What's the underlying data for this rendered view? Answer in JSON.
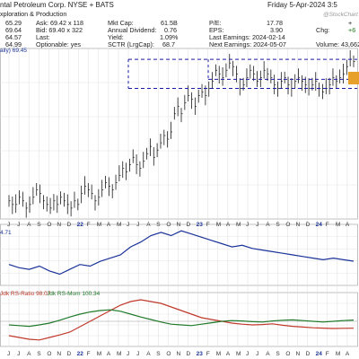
{
  "header": {
    "company": "ntal Petroleum Corp. NYSE + BATS",
    "date": "Friday  5-Apr-2024  3:5",
    "watermark": "@StockChart",
    "sector": "xploration & Production",
    "open": "65.29",
    "high": "69.64",
    "low": "64.57",
    "prev": "64.99",
    "ask": "Ask: 69.42 x 118",
    "bid": "Bid: 69.40 x 322",
    "last": "Last:",
    "optionable": "Optionable: yes",
    "mktcap": "Mkt Cap:",
    "mktcap_val": "61.5B",
    "div": "Annual Dividend:",
    "div_val": "0.76",
    "yield": "Yield:",
    "yield_val": "1.09%",
    "sctr": "SCTR (LrgCap):",
    "sctr_val": "68.7",
    "pe": "P/E:",
    "pe_val": "17.78",
    "eps": "EPS:",
    "eps_val": "3.90",
    "last_earn": "Last Earnings: 2024-02-14",
    "next_earn": "Next Earnings: 2024-05-07",
    "chg": "Chg:",
    "chg_val": "+6",
    "volume": "Volume: 43,662",
    "plus": "+"
  },
  "panels": {
    "price_label": "aily) 69.45",
    "mid_label": "4.71",
    "bottom_label_rs": "Jdk RS-Ratio 98.07",
    "bottom_label_mom": "Jdk RS-Mom 100.34"
  },
  "x_axis": {
    "labels": [
      "J",
      "J",
      "A",
      "S",
      "O",
      "N",
      "D",
      "22",
      "F",
      "M",
      "A",
      "M",
      "J",
      "J",
      "A",
      "S",
      "O",
      "N",
      "D",
      "23",
      "F",
      "M",
      "A",
      "M",
      "J",
      "J",
      "A",
      "S",
      "O",
      "N",
      "D",
      "24",
      "F",
      "M",
      "A"
    ]
  },
  "colors": {
    "price": "#1a1a1a",
    "channel": "#1a1aa8",
    "mid_line": "#1a3399",
    "rs_ratio": "#c0392b",
    "rs_mom": "#1f7a2a",
    "tag": "#e7a12a"
  },
  "chart_data": [
    {
      "type": "line",
      "title": "",
      "series": [
        {
          "values": [
            31,
            30,
            30,
            32,
            31,
            29,
            30,
            32,
            34,
            33,
            31,
            30,
            29,
            31,
            30,
            32,
            31,
            30,
            29,
            31,
            30,
            33,
            35,
            34,
            33,
            31,
            32,
            34,
            36,
            35,
            34,
            36,
            38,
            40,
            39,
            41,
            43,
            41,
            40,
            42,
            44,
            46,
            43,
            45,
            47,
            49,
            48,
            50,
            55,
            57,
            55,
            58,
            60,
            59,
            57,
            60,
            61,
            60,
            62,
            64,
            67,
            66,
            65,
            67,
            69,
            68,
            66,
            62,
            63,
            65,
            67,
            66,
            64,
            65,
            67,
            66,
            65,
            63,
            62,
            64,
            65,
            63,
            62,
            64,
            65,
            64,
            63,
            62,
            63,
            64,
            62,
            61,
            62,
            63,
            65,
            64,
            65,
            66,
            68,
            70,
            69.45
          ]
        }
      ],
      "channel_lines": [
        70,
        64.5,
        62
      ]
    },
    {
      "type": "line",
      "series": [
        {
          "values": [
            4.5,
            4.3,
            4.2,
            4.4,
            4.1,
            3.9,
            4.2,
            4.5,
            4.4,
            4.7,
            4.9,
            5.1,
            5.6,
            5.9,
            6.3,
            6.5,
            6.3,
            6.6,
            6.4,
            6.2,
            6.0,
            5.8,
            5.6,
            5.7,
            5.5,
            5.4,
            5.3,
            5.2,
            5.1,
            5.0,
            4.9,
            4.8,
            4.9,
            4.8,
            4.71
          ]
        }
      ]
    },
    {
      "type": "line",
      "series": [
        {
          "name": "Jdk RS-Ratio",
          "values": [
            96,
            95.5,
            95,
            94.8,
            95.5,
            96.2,
            97,
            98.5,
            100,
            101.5,
            103,
            104.5,
            105.5,
            106,
            105.5,
            105,
            104,
            103,
            102,
            101,
            100.5,
            100,
            99.5,
            99.2,
            99,
            99.1,
            99.3,
            98.9,
            98.6,
            98.4,
            98.2,
            98.1,
            98,
            98.05,
            98.07
          ]
        },
        {
          "name": "Jdk RS-Mom",
          "values": [
            99,
            98.8,
            98.6,
            99,
            99.5,
            100.3,
            101.2,
            102,
            102.6,
            103,
            103.2,
            102.8,
            102,
            101.2,
            100.5,
            99.8,
            99.2,
            99,
            98.8,
            99.2,
            99.6,
            100,
            100.2,
            100.1,
            99.9,
            99.8,
            100.1,
            100.3,
            100.4,
            100.2,
            100,
            99.8,
            100,
            100.2,
            100.34
          ]
        }
      ]
    }
  ]
}
